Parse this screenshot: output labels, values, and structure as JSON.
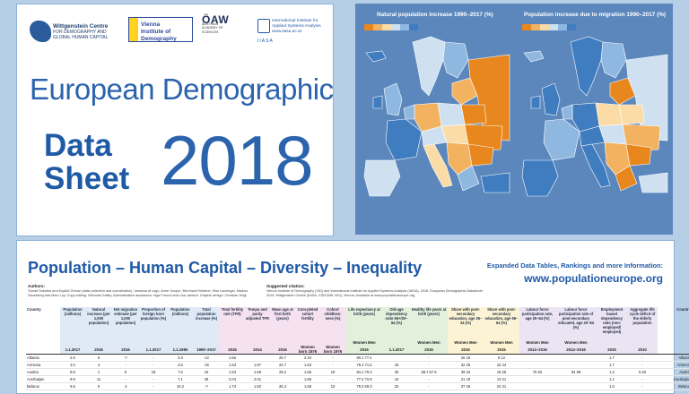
{
  "cover": {
    "logos": {
      "wittgenstein": {
        "name": "Wittgenstein Centre",
        "line2": "FOR DEMOGRAPHY AND",
        "line3": "GLOBAL HUMAN CAPITAL"
      },
      "vid": {
        "line1": "Vienna",
        "line2": "Institute of",
        "line3": "Demography"
      },
      "oaw": {
        "name": "ÖAW",
        "sub": "AUSTRIAN ACADEMY OF SCIENCES"
      },
      "iiasa": {
        "line1": "International Institute for",
        "line2": "Applied Systems Analysis",
        "line3": "www.iiasa.ac.at",
        "acronym": "IIASA"
      }
    },
    "title": "European Demographic",
    "data_word": "Data",
    "sheet_word": "Sheet",
    "year": "2018"
  },
  "maps": {
    "left_title": "Natural population increase 1990–2017 (%)",
    "right_title": "Population increase due to migration 1990–2017 (%)",
    "colors": {
      "sea": "#5b87bd",
      "neg_dark": "#e8871e",
      "neg_mid": "#f3b260",
      "neg_light": "#fbdca7",
      "pos_light": "#cfe0f1",
      "pos_mid": "#8fb8e0",
      "pos_dark": "#3f7cc0"
    }
  },
  "table_panel": {
    "title": "Population – Human Capital – Diversity – Inequality",
    "expanded": "Expanded Data Tables, Rankings and more Information:",
    "url": "www.populationeurope.org",
    "authors_heading": "Authors:",
    "authors_text": "Tomáš Sobotka and Kryštof Zeman (data collection and coordination), Vanessa di Lego, Anne Goujon, Bernhard Riederer, Eike Lachinger, Markus Sauerberg and Marc Luy. Copy-editing: Nicholas Gailey. Administrative assistance: Inga Freund and Lisa Janisch. Graphic design: Christian Högl.",
    "citation_heading": "Suggested citation:",
    "citation_text": "Vienna Institute of Demography (VID) and International Institute for Applied Systems Analysis (IIASA). 2018. European Demographic Datasheet 2018. Wittgenstein Centre (IIASA, VID/ÖAW, WU), Vienna. Available at www.populationeurope.org.",
    "columns": [
      "Country",
      "Population (millions)",
      "Natural increase (per 1,000 population)",
      "Net migration estimate (per 1,000 population)",
      "Proportion of foreign born population (%)",
      "Population (millions)",
      "Total population increase (%)",
      "Total fertility rate (TFR)",
      "Tempo and parity adjusted TFR",
      "Mean age at first birth (years)",
      "Com-pleted cohort fertility",
      "Cohort childless-ness (%)",
      "Life expectancy at birth (years)",
      "Old-age dependency ratio 65+/20–64 (%)",
      "Healthy life years at birth (years)",
      "Share with post-secondary education, age 25–34 (%)",
      "Share with post-secondary education, age 55–64 (%)",
      "Labour force participation rate, age 20–64 (%)",
      "Labour force participation rate of post-secondary educated, age 20–64 (%)",
      "Employment based dependency ratio (non-employed/ employed)",
      "Aggregate life cycle deficit of the elderly population",
      "Country"
    ],
    "sub_headers_1": [
      "",
      "",
      "",
      "",
      "",
      "",
      "",
      "",
      "",
      "",
      "",
      "",
      "Women Men",
      "",
      "Women Men",
      "Women Men",
      "Women Men",
      "Women Men",
      "Women Men",
      "",
      "",
      ""
    ],
    "sub_headers_2": [
      "",
      "1.1.2017",
      "2016",
      "2016",
      "1.1.2017",
      "1.1.1990",
      "1990–2017",
      "2016",
      "2014",
      "2016",
      "Women born 1976",
      "Women born 1976",
      "2016",
      "1.1.2017",
      "2016",
      "2015",
      "2015",
      "2014–2016",
      "2014–2016",
      "2015",
      "2010",
      ""
    ],
    "rows": [
      [
        "Albania",
        "2.9",
        "6",
        "-7",
        "-",
        "3.3",
        "-12",
        "1.56",
        "",
        "25.7",
        "2.34",
        "-",
        "80.1 77.4",
        "",
        "-",
        "26 18",
        "9 12",
        "",
        "",
        "1.7",
        "-",
        "Albania"
      ],
      [
        "Armenia",
        "3.0",
        "4",
        "-",
        "-",
        "3.5",
        "-15",
        "1.63",
        "1.87",
        "24.7",
        "1.63",
        "-",
        "78.4 71.5",
        "18",
        "-",
        "32 29",
        "23 24",
        "",
        "",
        "1.7",
        "-",
        "Armenia"
      ],
      [
        "Austria",
        "8.8",
        "1",
        "8",
        "19",
        "7.6",
        "15",
        "1.53",
        "1.68",
        "29.2",
        "1.65",
        "19",
        "84.1 79.3",
        "30",
        "58.7 57.9",
        "39 34",
        "19 26",
        "75 83",
        "84 89",
        "1.2",
        "0.26",
        "Austria"
      ],
      [
        "Azerbaijan",
        "9.8",
        "11",
        "-",
        "-",
        "7.1",
        "38",
        "2.04",
        "2.01",
        "",
        "1.86",
        "-",
        "77.2 72.9",
        "10",
        "-",
        "21 19",
        "13 21",
        "",
        "",
        "1.1",
        "-",
        "Azerbaijan"
      ],
      [
        "Belarus",
        "9.5",
        "0",
        "-1",
        "-",
        "10.2",
        "-7",
        "1.74",
        "1.82",
        "25.4",
        "1.68",
        "13",
        "79.2 69.3",
        "22",
        "-",
        "37 26",
        "22 21",
        "",
        "",
        "1.0",
        "-",
        "Belarus"
      ]
    ]
  }
}
